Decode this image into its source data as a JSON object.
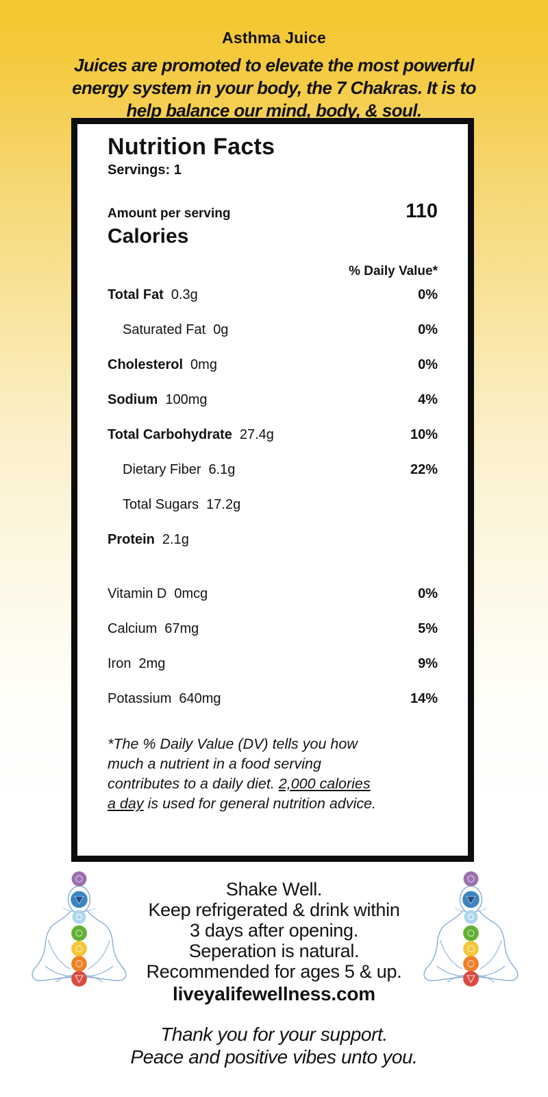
{
  "page": {
    "bg_top_color": "#F5C72E",
    "bg_bottom_color": "#FFFFFF",
    "text_color": "#121212"
  },
  "header": {
    "title": "Asthma Juice",
    "subtitle_lines": [
      "Juices are promoted to elevate the most powerful",
      "energy system in your body, the 7 Chakras. It is to",
      "help balance our mind, body, & soul."
    ]
  },
  "label": {
    "title": "Nutrition Facts",
    "servings": "Servings: 1",
    "amount_per_serving": "Amount per serving",
    "calories_value": "110",
    "calories_label": "Calories",
    "daily_value_header": "% Daily Value*",
    "rows": [
      {
        "name": "Total Fat",
        "amount": "0.3g",
        "dv": "0%",
        "bold": true,
        "indent": false
      },
      {
        "name": "Saturated Fat",
        "amount": "0g",
        "dv": "0%",
        "bold": false,
        "indent": true
      },
      {
        "name": "Cholesterol",
        "amount": "0mg",
        "dv": "0%",
        "bold": true,
        "indent": false
      },
      {
        "name": "Sodium",
        "amount": "100mg",
        "dv": "4%",
        "bold": true,
        "indent": false
      },
      {
        "name": "Total Carbohydrate",
        "amount": "27.4g",
        "dv": "10%",
        "bold": true,
        "indent": false
      },
      {
        "name": "Dietary Fiber",
        "amount": "6.1g",
        "dv": "22%",
        "bold": false,
        "indent": true
      },
      {
        "name": "Total Sugars",
        "amount": "17.2g",
        "dv": "",
        "bold": false,
        "indent": true
      },
      {
        "name": "Protein",
        "amount": "2.1g",
        "dv": "",
        "bold": true,
        "indent": false
      }
    ],
    "vitamin_rows": [
      {
        "name": "Vitamin D",
        "amount": "0mcg",
        "dv": "0%"
      },
      {
        "name": "Calcium",
        "amount": "67mg",
        "dv": "5%"
      },
      {
        "name": "Iron",
        "amount": "2mg",
        "dv": "9%"
      },
      {
        "name": "Potassium",
        "amount": "640mg",
        "dv": "14%"
      }
    ],
    "footnote_lines": [
      [
        {
          "t": "*The % Daily Value (DV) tells you how",
          "u": false
        }
      ],
      [
        {
          "t": "much a nutrient in a food serving",
          "u": false
        }
      ],
      [
        {
          "t": "contributes to a daily diet. ",
          "u": false
        },
        {
          "t": "2,000 calories",
          "u": true
        }
      ],
      [
        {
          "t": "a day",
          "u": true
        },
        {
          "t": " is used for general nutrition advice.",
          "u": false
        }
      ]
    ]
  },
  "care": {
    "lines": [
      "Shake Well.",
      "Keep refrigerated & drink within",
      "3 days after opening.",
      "Seperation is natural.",
      "Recommended for ages 5 & up."
    ],
    "website": "liveyalifewellness.com"
  },
  "footer": {
    "lines": [
      "Thank you for your support.",
      "Peace and positive vibes unto you."
    ]
  },
  "chakra_figure": {
    "description": "meditating-person-with-7-chakras",
    "outline_color": "#8fb3dc",
    "chakra_colors": {
      "crown_purple": "#9c6fae",
      "third_eye_blue": "#3d85c0",
      "throat_light_blue": "#a9d6ee",
      "heart_green": "#62b135",
      "solar_yellow": "#f4c637",
      "sacral_orange": "#ee8026",
      "root_red": "#d94b41"
    }
  }
}
